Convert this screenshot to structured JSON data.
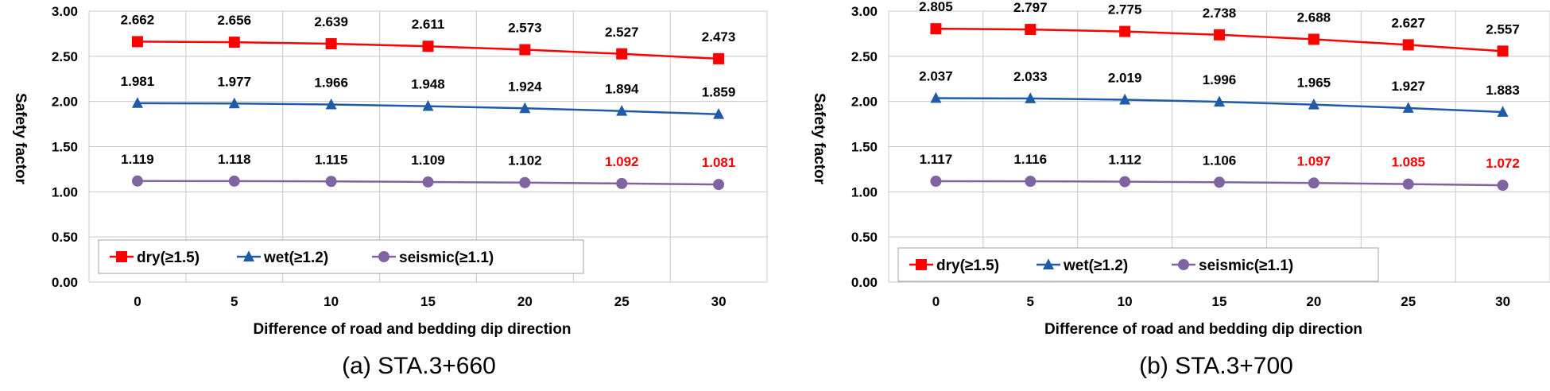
{
  "chart_data": [
    {
      "type": "line",
      "caption": "(a) STA.3+660",
      "xlabel": "Difference of road and bedding dip direction",
      "ylabel": "Safety factor",
      "ylim": [
        0,
        3
      ],
      "yticks": [
        "0.00",
        "0.50",
        "1.00",
        "1.50",
        "2.00",
        "2.50",
        "3.00"
      ],
      "categories": [
        "0",
        "5",
        "10",
        "15",
        "20",
        "25",
        "30"
      ],
      "grid": true,
      "legend_position": "bottom-left",
      "series": [
        {
          "name": "dry(≥1.5)",
          "color": "#ff0000",
          "marker": "square",
          "values": [
            2.662,
            2.656,
            2.639,
            2.611,
            2.573,
            2.527,
            2.473
          ],
          "labels": [
            "2.662",
            "2.656",
            "2.639",
            "2.611",
            "2.573",
            "2.527",
            "2.473"
          ],
          "label_colors": [
            "#000000",
            "#000000",
            "#000000",
            "#000000",
            "#000000",
            "#000000",
            "#000000"
          ]
        },
        {
          "name": "wet(≥1.2)",
          "color": "#1f5ba8",
          "marker": "triangle",
          "values": [
            1.981,
            1.977,
            1.966,
            1.948,
            1.924,
            1.894,
            1.859
          ],
          "labels": [
            "1.981",
            "1.977",
            "1.966",
            "1.948",
            "1.924",
            "1.894",
            "1.859"
          ],
          "label_colors": [
            "#000000",
            "#000000",
            "#000000",
            "#000000",
            "#000000",
            "#000000",
            "#000000"
          ]
        },
        {
          "name": "seismic(≥1.1)",
          "color": "#8064a2",
          "marker": "circle",
          "values": [
            1.119,
            1.118,
            1.115,
            1.109,
            1.102,
            1.092,
            1.081
          ],
          "labels": [
            "1.119",
            "1.118",
            "1.115",
            "1.109",
            "1.102",
            "1.092",
            "1.081"
          ],
          "label_colors": [
            "#000000",
            "#000000",
            "#000000",
            "#000000",
            "#000000",
            "#ff0000",
            "#ff0000"
          ]
        }
      ]
    },
    {
      "type": "line",
      "caption": "(b) STA.3+700",
      "xlabel": "Difference of road and bedding dip direction",
      "ylabel": "Safety factor",
      "ylim": [
        0,
        3
      ],
      "yticks": [
        "0.00",
        "0.50",
        "1.00",
        "1.50",
        "2.00",
        "2.50",
        "3.00"
      ],
      "categories": [
        "0",
        "5",
        "10",
        "15",
        "20",
        "25",
        "30"
      ],
      "grid": true,
      "legend_position": "bottom-left",
      "series": [
        {
          "name": "dry(≥1.5)",
          "color": "#ff0000",
          "marker": "square",
          "values": [
            2.805,
            2.797,
            2.775,
            2.738,
            2.688,
            2.627,
            2.557
          ],
          "labels": [
            "2.805",
            "2.797",
            "2.775",
            "2.738",
            "2.688",
            "2.627",
            "2.557"
          ],
          "label_colors": [
            "#000000",
            "#000000",
            "#000000",
            "#000000",
            "#000000",
            "#000000",
            "#000000"
          ]
        },
        {
          "name": "wet(≥1.2)",
          "color": "#1f5ba8",
          "marker": "triangle",
          "values": [
            2.037,
            2.033,
            2.019,
            1.996,
            1.965,
            1.927,
            1.883
          ],
          "labels": [
            "2.037",
            "2.033",
            "2.019",
            "1.996",
            "1.965",
            "1.927",
            "1.883"
          ],
          "label_colors": [
            "#000000",
            "#000000",
            "#000000",
            "#000000",
            "#000000",
            "#000000",
            "#000000"
          ]
        },
        {
          "name": "seismic(≥1.1)",
          "color": "#8064a2",
          "marker": "circle",
          "values": [
            1.117,
            1.116,
            1.112,
            1.106,
            1.097,
            1.085,
            1.072
          ],
          "labels": [
            "1.117",
            "1.116",
            "1.112",
            "1.106",
            "1.097",
            "1.085",
            "1.072"
          ],
          "label_colors": [
            "#000000",
            "#000000",
            "#000000",
            "#000000",
            "#ff0000",
            "#ff0000",
            "#ff0000"
          ]
        }
      ]
    }
  ]
}
